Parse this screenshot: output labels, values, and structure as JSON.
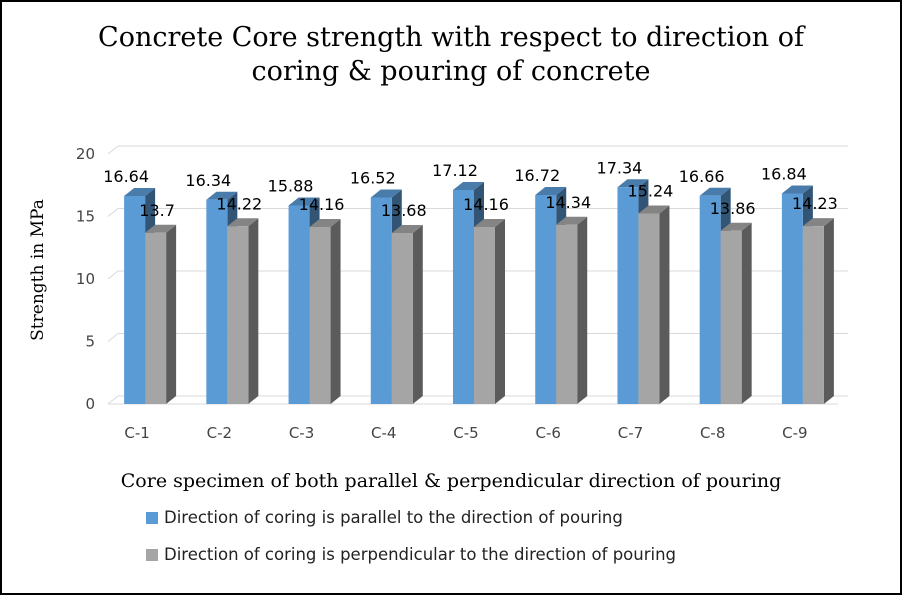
{
  "chart_data": {
    "type": "bar",
    "title": "Concrete Core strength with respect to direction of coring & pouring of concrete",
    "title_lines": [
      "Concrete Core strength with respect to direction of",
      "coring & pouring of concrete"
    ],
    "xlabel": "Core specimen of both parallel & perpendicular direction of pouring",
    "ylabel": "Strength in MPa",
    "categories": [
      "C-1",
      "C-2",
      "C-3",
      "C-4",
      "C-5",
      "C-6",
      "C-7",
      "C-8",
      "C-9"
    ],
    "series": [
      {
        "name": "Direction of coring is parallel to the direction of pouring",
        "color": "#5B9BD5",
        "values": [
          16.64,
          16.34,
          15.88,
          16.52,
          17.12,
          16.72,
          17.34,
          16.66,
          16.84
        ],
        "labels": [
          "16.64",
          "16.34",
          "15.88",
          "16.52",
          "17.12",
          "16.72",
          "17.34",
          "16.66",
          "16.84"
        ]
      },
      {
        "name": "Direction of coring is perpendicular to the direction of pouring",
        "color": "#A5A5A5",
        "values": [
          13.7,
          14.22,
          14.16,
          13.68,
          14.16,
          14.34,
          15.24,
          13.86,
          14.23
        ],
        "labels": [
          "13.7",
          "14.22",
          "14.16",
          "13.68",
          "14.16",
          "14.34",
          "15.24",
          "13.86",
          "14.23"
        ]
      }
    ],
    "ylim": [
      0,
      20
    ],
    "yticks": [
      "0",
      "5",
      "10",
      "15",
      "20"
    ],
    "grid": true,
    "legend_position": "bottom",
    "style": "3d-clustered-column"
  }
}
